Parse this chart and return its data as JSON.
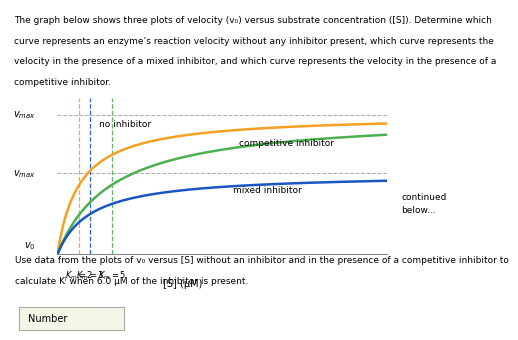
{
  "vmax": 1.0,
  "vmax_mixed": 0.58,
  "Km_no_inhib": 2,
  "Km_competitive": 5,
  "Km_mixed": 3,
  "xmax": 30,
  "colors": {
    "no_inhibitor": "#F5A020",
    "competitive": "#4CAF50",
    "mixed": "#1A56C4"
  },
  "xlabel": "[S] (μM)",
  "continued_text": "continued\nbelow...",
  "top_text_line1": "The graph below shows three plots of velocity (v₀) versus substrate concentration ([S]). Determine which",
  "top_text_line2": "curve represents an enzyme’s reaction velocity without any inhibitor present, which curve represents the",
  "top_text_line3": "velocity in the presence of a mixed inhibitor, and which curve represents the velocity in the presence of a",
  "top_text_line4": "competitive inhibitor.",
  "bot_text_line1": "Use data from the plots of v₀ versus [S] without an inhibitor and in the presence of a competitive inhibitor to",
  "bot_text_line2": "calculate Kᴵ when 6.0 μM of the inhibitor is present.",
  "background_color": "#ffffff",
  "label_no_inhibitor": "no inhibitor",
  "label_competitive": "competitive inhibitor",
  "label_mixed": "mixed inhibitor"
}
